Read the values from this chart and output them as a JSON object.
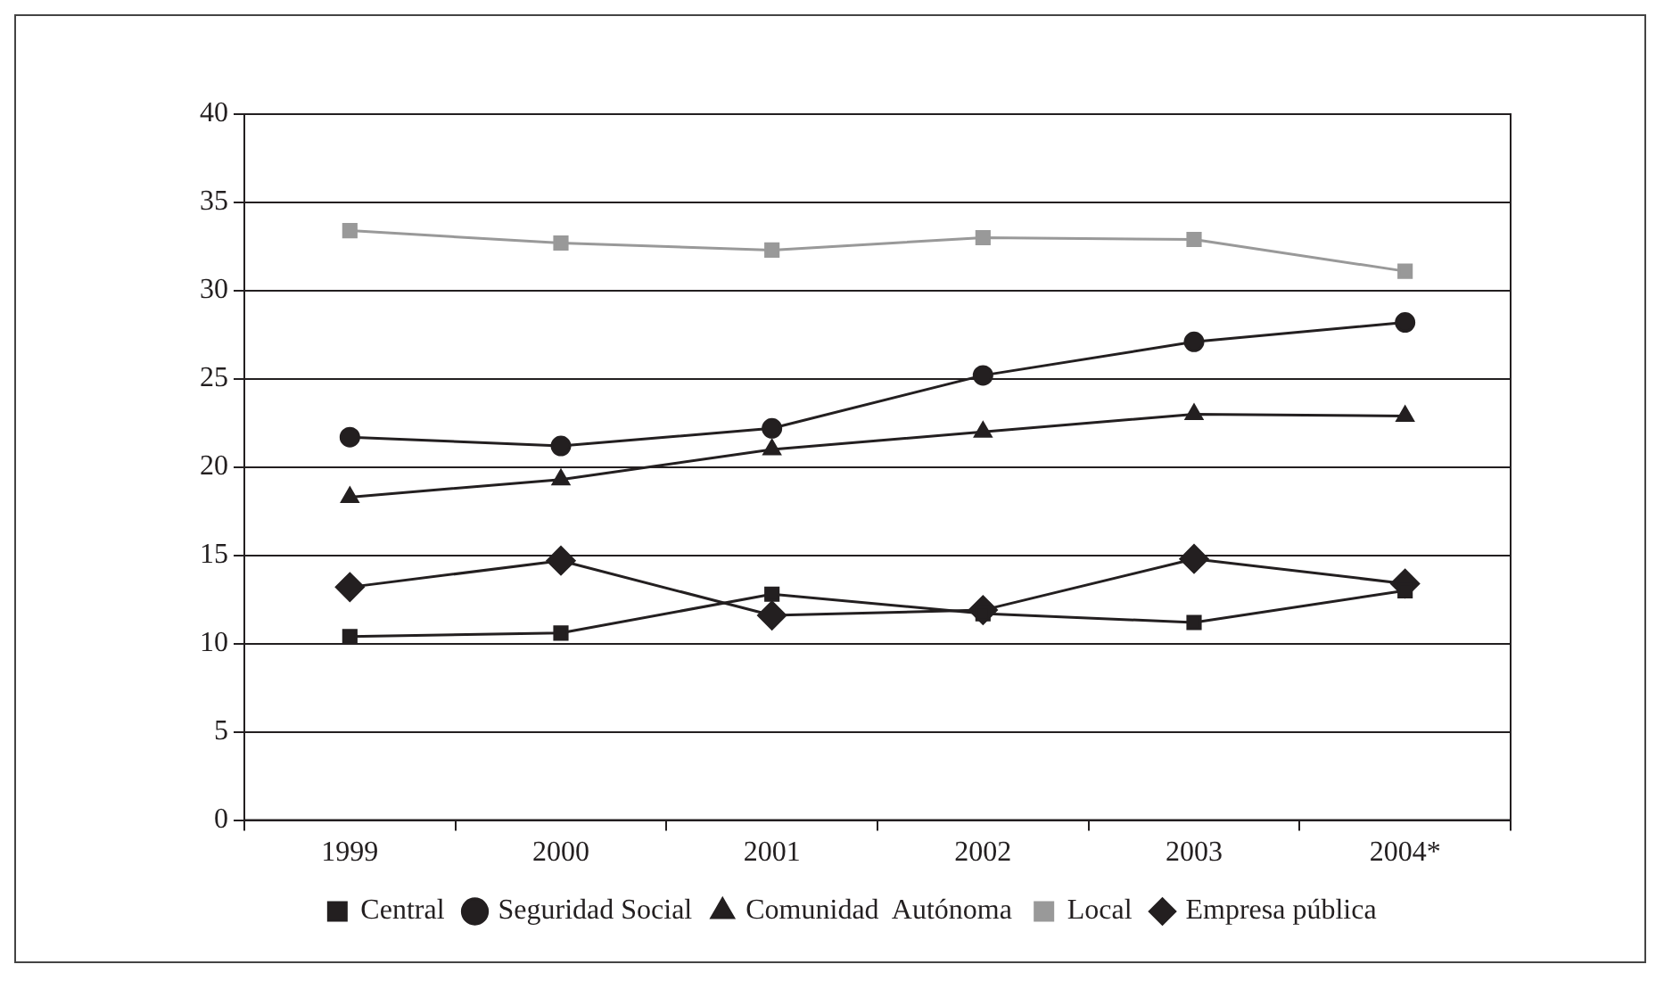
{
  "chart_data": {
    "type": "line",
    "categories": [
      "1999",
      "2000",
      "2001",
      "2002",
      "2003",
      "2004*"
    ],
    "series": [
      {
        "name": "Central",
        "color": "#231f20",
        "marker": "square",
        "values": [
          10.4,
          10.6,
          12.8,
          11.7,
          11.2,
          13.0
        ]
      },
      {
        "name": "Seguridad Social",
        "color": "#231f20",
        "marker": "circle",
        "values": [
          21.7,
          21.2,
          22.2,
          25.2,
          27.1,
          28.2
        ]
      },
      {
        "name": "Comunidad  Autónoma",
        "color": "#231f20",
        "marker": "triangle",
        "values": [
          18.3,
          19.3,
          21.0,
          22.0,
          23.0,
          22.9
        ]
      },
      {
        "name": "Local",
        "color": "#999999",
        "marker": "square",
        "values": [
          33.4,
          32.7,
          32.3,
          33.0,
          32.9,
          31.1
        ]
      },
      {
        "name": "Empresa pública",
        "color": "#231f20",
        "marker": "diamond",
        "values": [
          13.2,
          14.7,
          11.6,
          11.9,
          14.8,
          13.4
        ]
      }
    ],
    "ylim": [
      0,
      40
    ],
    "yticks": [
      0,
      5,
      10,
      15,
      20,
      25,
      30,
      35,
      40
    ],
    "grid": "y",
    "legend": "bottom",
    "line_style": "solid"
  }
}
